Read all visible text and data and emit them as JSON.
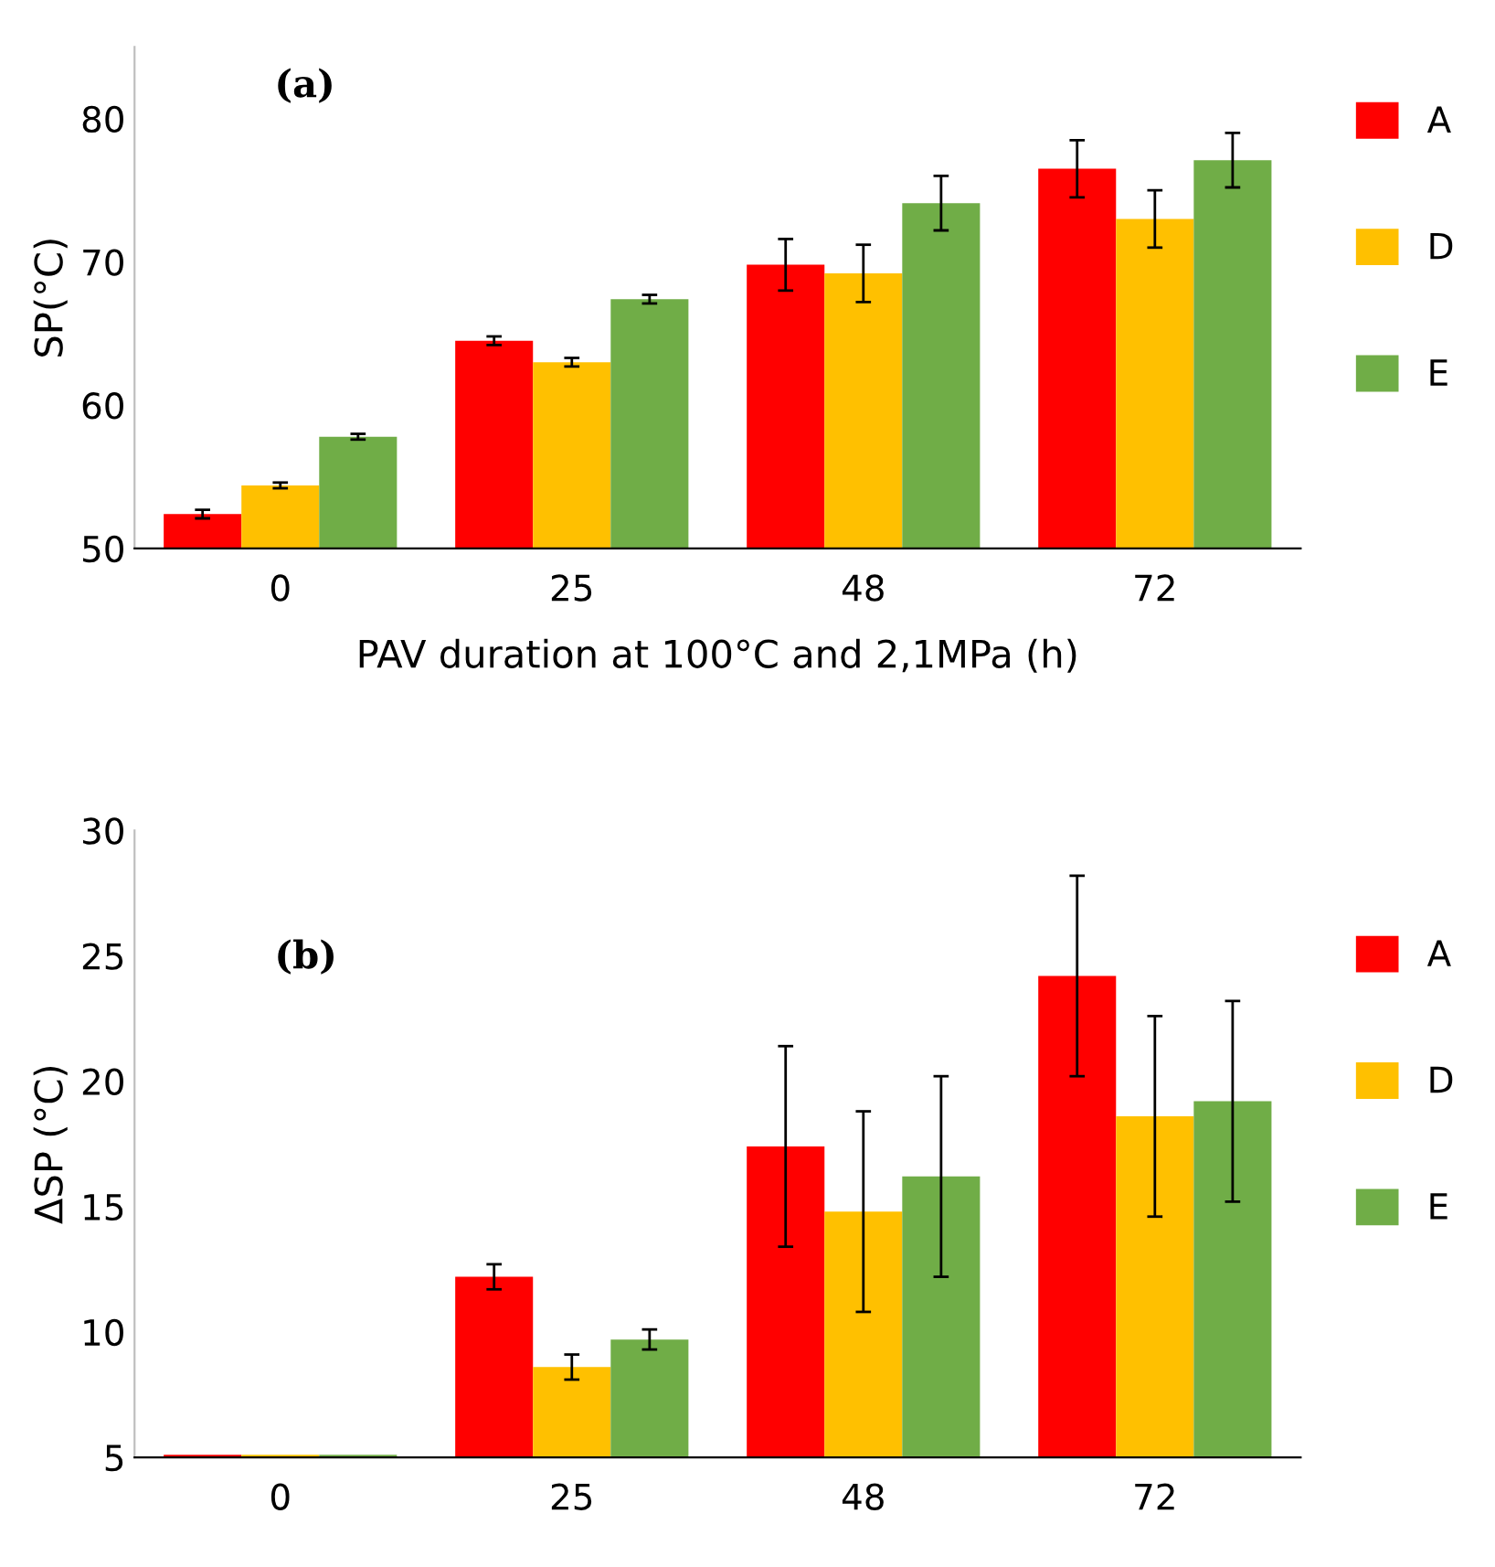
{
  "chart_data": [
    {
      "type": "bar",
      "xlabel": "PAV duration at 100°C and 2,1MPa (h)",
      "ylabel": "SP(°C)",
      "annotations": [
        "(a)"
      ],
      "categories": [
        "0",
        "25",
        "48",
        "72"
      ],
      "series": [
        {
          "name": "A",
          "color": "#ff0000",
          "values": [
            52.4,
            64.5,
            69.8,
            76.5
          ],
          "errors": [
            0.3,
            0.3,
            1.8,
            2.0
          ]
        },
        {
          "name": "D",
          "color": "#ffc000",
          "values": [
            54.4,
            63.0,
            69.2,
            73.0
          ],
          "errors": [
            0.2,
            0.3,
            2.0,
            2.0
          ]
        },
        {
          "name": "E",
          "color": "#70ad47",
          "values": [
            57.8,
            67.4,
            74.1,
            77.1
          ],
          "errors": [
            0.2,
            0.3,
            1.9,
            1.9
          ]
        }
      ],
      "ylim": [
        50,
        85
      ],
      "yticks": [
        50,
        60,
        70,
        80
      ],
      "grid": false,
      "legend": "right"
    },
    {
      "type": "bar",
      "ylabel": "ΔSP (°C)",
      "annotations": [
        "(b)"
      ],
      "categories": [
        "0",
        "25",
        "48",
        "72"
      ],
      "series": [
        {
          "name": "A",
          "color": "#ff0000",
          "values": [
            5.1,
            12.2,
            17.4,
            24.2
          ],
          "errors": [
            null,
            0.5,
            4.0,
            4.0
          ]
        },
        {
          "name": "D",
          "color": "#ffc000",
          "values": [
            5.1,
            8.6,
            14.8,
            18.6
          ],
          "errors": [
            null,
            0.5,
            4.0,
            4.0
          ]
        },
        {
          "name": "E",
          "color": "#70ad47",
          "values": [
            5.1,
            9.7,
            16.2,
            19.2
          ],
          "errors": [
            null,
            0.4,
            4.0,
            4.0
          ]
        }
      ],
      "ylim": [
        5,
        30
      ],
      "yticks": [
        5,
        10,
        15,
        20,
        25,
        30
      ],
      "grid": false,
      "legend": "right"
    }
  ]
}
